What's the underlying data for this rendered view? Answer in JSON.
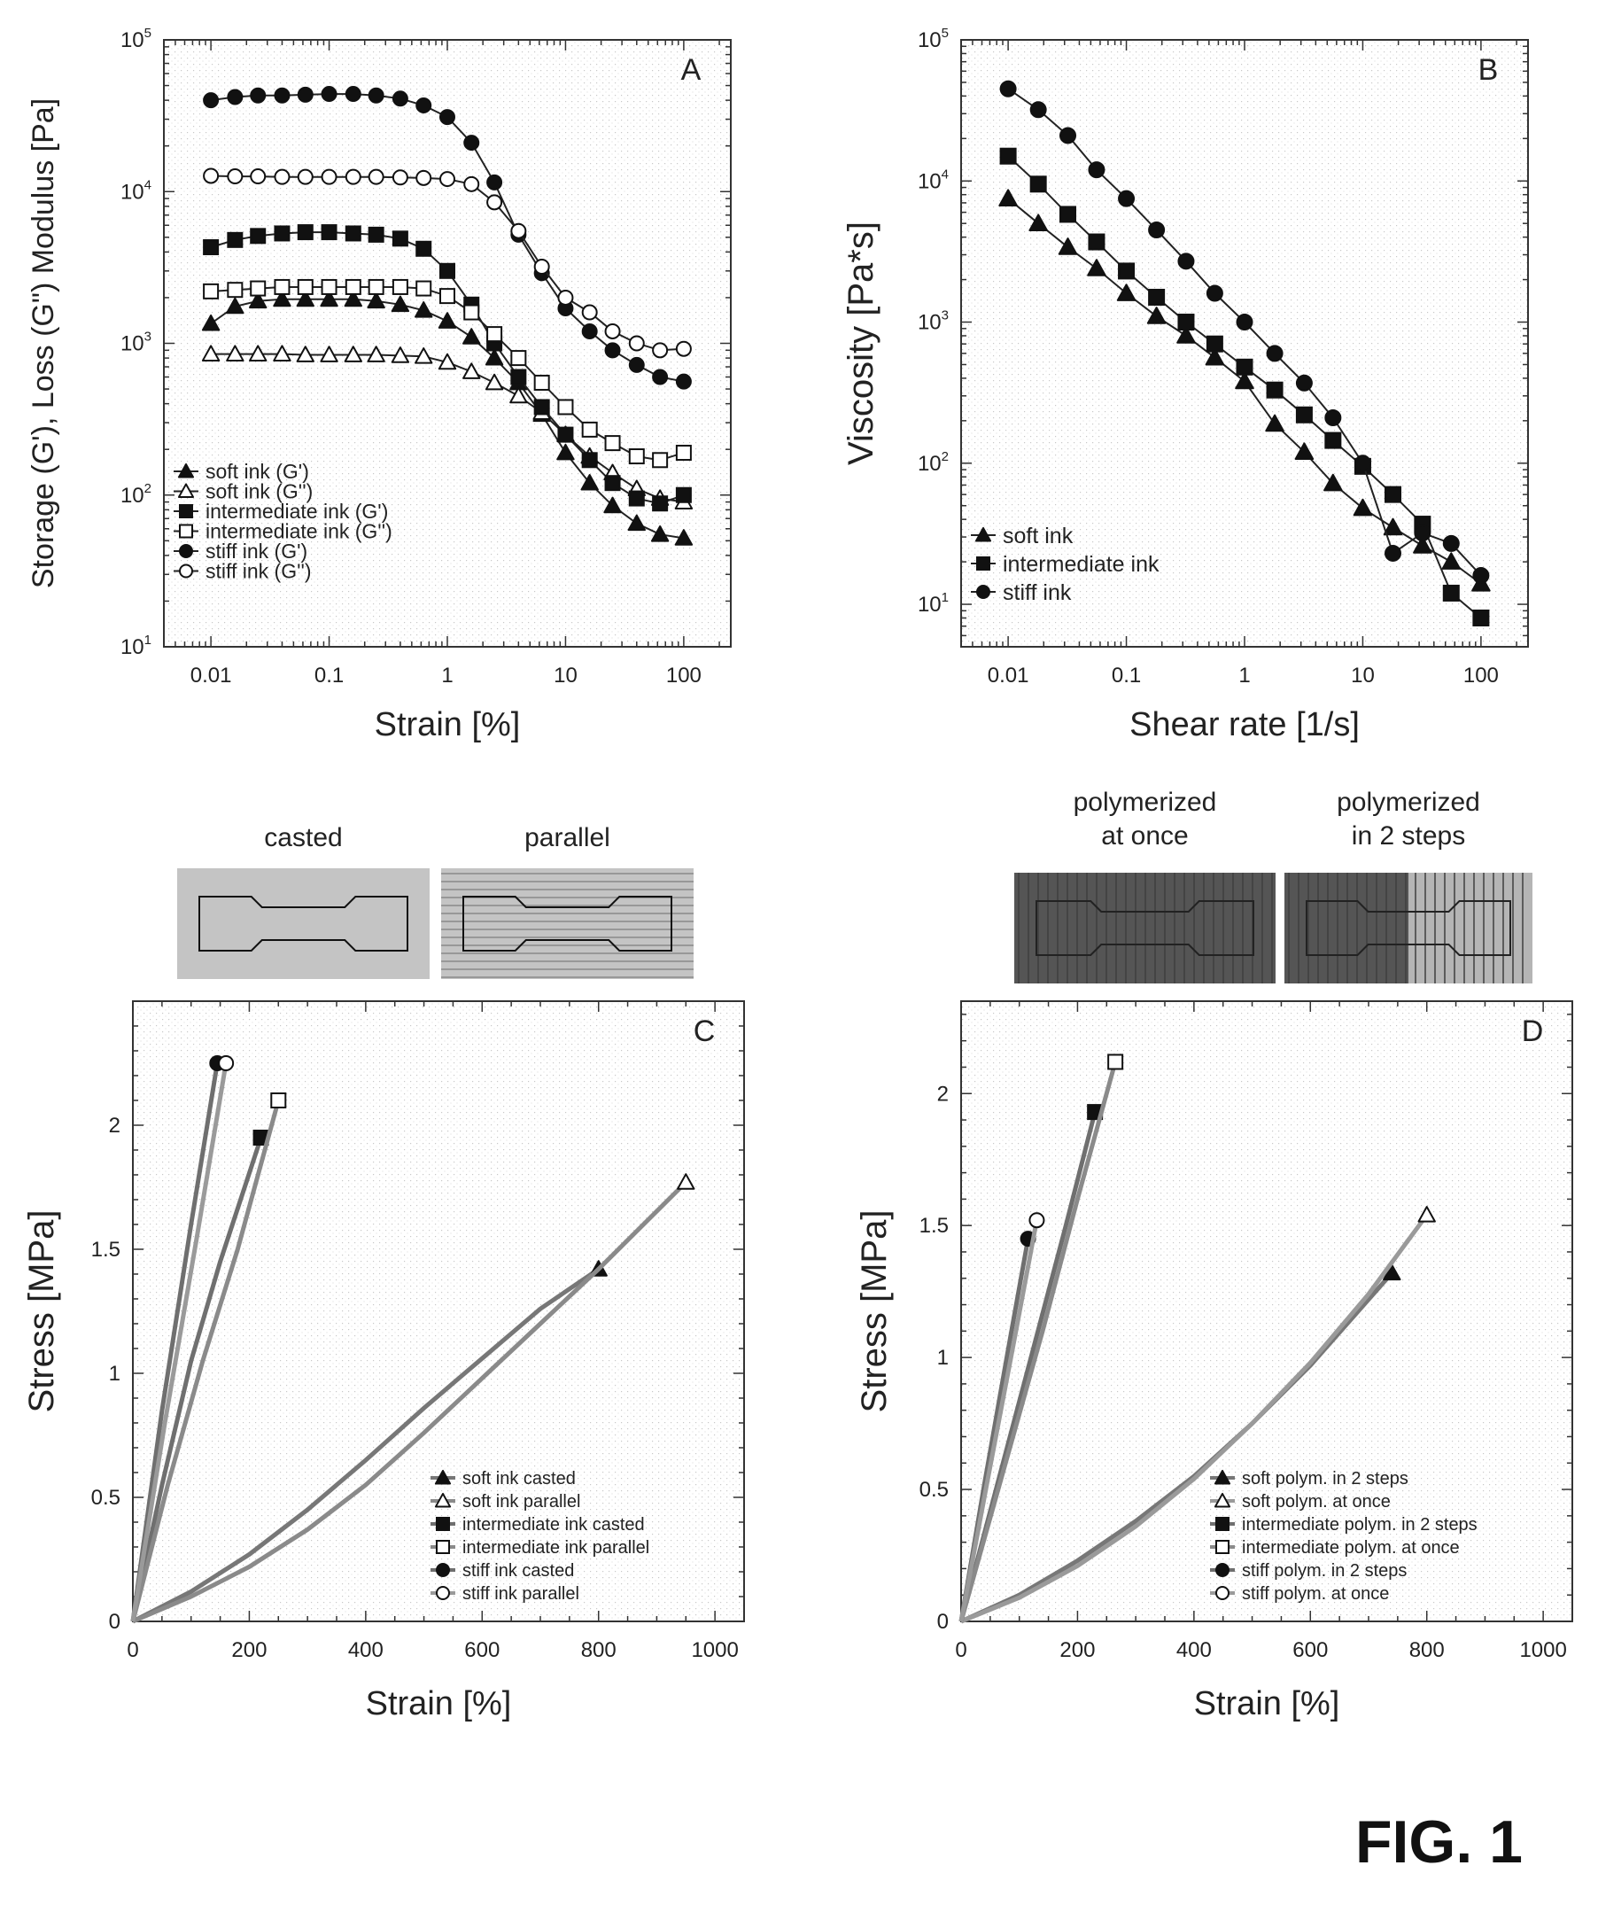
{
  "figure_label": "FIG. 1",
  "chart_data": [
    {
      "panel": "A",
      "type": "line",
      "xlabel": "Strain [%]",
      "ylabel": "Storage (G'), Loss (G\") Modulus [Pa]",
      "xscale": "log",
      "yscale": "log",
      "xlim": [
        0.004,
        250
      ],
      "ylim": [
        10,
        100000
      ],
      "xticks": [
        {
          "v": 0.01,
          "label": "0.01"
        },
        {
          "v": 0.1,
          "label": "0.1"
        },
        {
          "v": 1,
          "label": "1"
        },
        {
          "v": 10,
          "label": "10"
        },
        {
          "v": 100,
          "label": "100"
        }
      ],
      "yticks": [
        {
          "v": 10,
          "base": "10",
          "exp": "1"
        },
        {
          "v": 100,
          "base": "10",
          "exp": "2"
        },
        {
          "v": 1000,
          "base": "10",
          "exp": "3"
        },
        {
          "v": 10000,
          "base": "10",
          "exp": "4"
        },
        {
          "v": 100000,
          "base": "10",
          "exp": "5"
        }
      ],
      "legend_position": "bottom-left",
      "x": [
        0.01,
        0.016,
        0.025,
        0.04,
        0.063,
        0.1,
        0.16,
        0.25,
        0.4,
        0.63,
        1,
        1.6,
        2.5,
        4,
        6.3,
        10,
        16,
        25,
        40,
        63,
        100
      ],
      "series": [
        {
          "name": "soft ink (G')",
          "marker": "triangle",
          "filled": true,
          "values": [
            1350,
            1750,
            1900,
            1950,
            1950,
            1950,
            1950,
            1900,
            1800,
            1650,
            1400,
            1100,
            800,
            550,
            340,
            190,
            120,
            85,
            65,
            55,
            52
          ]
        },
        {
          "name": "soft ink (G'')",
          "marker": "triangle",
          "filled": false,
          "values": [
            850,
            850,
            850,
            850,
            840,
            840,
            840,
            840,
            830,
            820,
            750,
            650,
            550,
            450,
            350,
            250,
            180,
            140,
            110,
            95,
            90
          ]
        },
        {
          "name": "intermediate ink (G')",
          "marker": "square",
          "filled": true,
          "values": [
            4300,
            4800,
            5100,
            5300,
            5400,
            5400,
            5300,
            5200,
            4900,
            4200,
            3000,
            1800,
            1000,
            600,
            380,
            250,
            170,
            120,
            95,
            88,
            100
          ]
        },
        {
          "name": "intermediate ink (G'')",
          "marker": "square",
          "filled": false,
          "values": [
            2200,
            2250,
            2300,
            2350,
            2350,
            2350,
            2350,
            2350,
            2350,
            2300,
            2050,
            1600,
            1150,
            800,
            550,
            380,
            270,
            220,
            180,
            170,
            190
          ]
        },
        {
          "name": "stiff ink (G')",
          "marker": "circle",
          "filled": true,
          "values": [
            40000,
            42000,
            43000,
            43000,
            43500,
            44000,
            44000,
            43000,
            41000,
            37000,
            31000,
            21000,
            11500,
            5200,
            2900,
            1700,
            1200,
            900,
            720,
            600,
            560
          ]
        },
        {
          "name": "stiff ink (G'')",
          "marker": "circle",
          "filled": false,
          "values": [
            12700,
            12600,
            12600,
            12500,
            12500,
            12500,
            12500,
            12500,
            12400,
            12300,
            12100,
            11200,
            8500,
            5500,
            3200,
            2000,
            1600,
            1200,
            1000,
            900,
            920
          ]
        }
      ]
    },
    {
      "panel": "B",
      "type": "line",
      "xlabel": "Shear rate [1/s]",
      "ylabel": "Viscosity [Pa*s]",
      "xscale": "log",
      "yscale": "log",
      "xlim": [
        0.004,
        250
      ],
      "ylim": [
        5,
        100000
      ],
      "xticks": [
        {
          "v": 0.01,
          "label": "0.01"
        },
        {
          "v": 0.1,
          "label": "0.1"
        },
        {
          "v": 1,
          "label": "1"
        },
        {
          "v": 10,
          "label": "10"
        },
        {
          "v": 100,
          "label": "100"
        }
      ],
      "yticks": [
        {
          "v": 10,
          "base": "10",
          "exp": "1"
        },
        {
          "v": 100,
          "base": "10",
          "exp": "2"
        },
        {
          "v": 1000,
          "base": "10",
          "exp": "3"
        },
        {
          "v": 10000,
          "base": "10",
          "exp": "4"
        },
        {
          "v": 100000,
          "base": "10",
          "exp": "5"
        }
      ],
      "legend_position": "bottom-left",
      "x": [
        0.01,
        0.018,
        0.032,
        0.056,
        0.1,
        0.18,
        0.32,
        0.56,
        1,
        1.8,
        3.2,
        5.6,
        10,
        18,
        32,
        56,
        100
      ],
      "series": [
        {
          "name": "soft ink",
          "marker": "triangle",
          "filled": true,
          "values": [
            7500,
            5000,
            3400,
            2400,
            1600,
            1100,
            800,
            560,
            380,
            190,
            120,
            72,
            48,
            35,
            26,
            20,
            14
          ]
        },
        {
          "name": "intermediate ink",
          "marker": "square",
          "filled": true,
          "values": [
            15000,
            9500,
            5800,
            3700,
            2300,
            1500,
            1000,
            700,
            480,
            330,
            220,
            145,
            95,
            60,
            37,
            12,
            8
          ]
        },
        {
          "name": "stiff ink",
          "marker": "circle",
          "filled": true,
          "values": [
            45000,
            32000,
            21000,
            12000,
            7500,
            4500,
            2700,
            1600,
            1000,
            600,
            370,
            210,
            100,
            23,
            32,
            27,
            16
          ]
        }
      ]
    },
    {
      "panel": "C",
      "type": "line",
      "xlabel": "Strain [%]",
      "ylabel": "Stress [MPa]",
      "xscale": "linear",
      "yscale": "linear",
      "xlim": [
        0,
        1050
      ],
      "ylim": [
        0,
        2.5
      ],
      "xticks": [
        {
          "v": 0,
          "label": "0"
        },
        {
          "v": 200,
          "label": "200"
        },
        {
          "v": 400,
          "label": "400"
        },
        {
          "v": 600,
          "label": "600"
        },
        {
          "v": 800,
          "label": "800"
        },
        {
          "v": 1000,
          "label": "1000"
        }
      ],
      "yticks": [
        {
          "v": 0,
          "label": "0"
        },
        {
          "v": 0.5,
          "label": "0.5"
        },
        {
          "v": 1,
          "label": "1"
        },
        {
          "v": 1.5,
          "label": "1.5"
        },
        {
          "v": 2,
          "label": "2"
        }
      ],
      "legend_position": "bottom-right",
      "images": [
        {
          "label": "casted",
          "pattern": "plain"
        },
        {
          "label": "parallel",
          "pattern": "horizontal-lines"
        }
      ],
      "series": [
        {
          "name": "soft ink casted",
          "marker": "triangle",
          "filled": true,
          "color": "#777777",
          "x": [
            0,
            100,
            200,
            300,
            400,
            500,
            600,
            700,
            800
          ],
          "values": [
            0,
            0.12,
            0.27,
            0.45,
            0.65,
            0.86,
            1.06,
            1.26,
            1.42
          ]
        },
        {
          "name": "soft ink parallel",
          "marker": "triangle",
          "filled": false,
          "color": "#8a8a8a",
          "x": [
            0,
            100,
            200,
            300,
            400,
            500,
            600,
            700,
            800,
            950
          ],
          "values": [
            0,
            0.1,
            0.22,
            0.37,
            0.55,
            0.76,
            0.98,
            1.2,
            1.42,
            1.77
          ]
        },
        {
          "name": "intermediate ink casted",
          "marker": "square",
          "filled": true,
          "color": "#6f6f6f",
          "x": [
            0,
            50,
            100,
            150,
            220
          ],
          "values": [
            0,
            0.55,
            1.05,
            1.45,
            1.95
          ]
        },
        {
          "name": "intermediate ink parallel",
          "marker": "square",
          "filled": false,
          "color": "#8a8a8a",
          "x": [
            0,
            60,
            120,
            180,
            250
          ],
          "values": [
            0,
            0.55,
            1.05,
            1.5,
            2.1
          ]
        },
        {
          "name": "stiff ink casted",
          "marker": "circle",
          "filled": true,
          "color": "#6f6f6f",
          "x": [
            0,
            50,
            100,
            145
          ],
          "values": [
            0,
            0.85,
            1.6,
            2.25
          ]
        },
        {
          "name": "stiff ink parallel",
          "marker": "circle",
          "filled": false,
          "color": "#9a9a9a",
          "x": [
            0,
            55,
            110,
            160
          ],
          "values": [
            0,
            0.8,
            1.55,
            2.25
          ]
        }
      ]
    },
    {
      "panel": "D",
      "type": "line",
      "xlabel": "Strain [%]",
      "ylabel": "Stress [MPa]",
      "xscale": "linear",
      "yscale": "linear",
      "xlim": [
        0,
        1050
      ],
      "ylim": [
        0,
        2.35
      ],
      "xticks": [
        {
          "v": 0,
          "label": "0"
        },
        {
          "v": 200,
          "label": "200"
        },
        {
          "v": 400,
          "label": "400"
        },
        {
          "v": 600,
          "label": "600"
        },
        {
          "v": 800,
          "label": "800"
        },
        {
          "v": 1000,
          "label": "1000"
        }
      ],
      "yticks": [
        {
          "v": 0,
          "label": "0"
        },
        {
          "v": 0.5,
          "label": "0.5"
        },
        {
          "v": 1,
          "label": "1"
        },
        {
          "v": 1.5,
          "label": "1.5"
        },
        {
          "v": 2,
          "label": "2"
        }
      ],
      "legend_position": "bottom-right",
      "images": [
        {
          "label": "polymerized at once",
          "line1": "polymerized",
          "line2": "at once",
          "pattern": "dark-vertical"
        },
        {
          "label": "polymerized in 2 steps",
          "line1": "polymerized",
          "line2": "in 2 steps",
          "pattern": "two-tone-vertical"
        }
      ],
      "series": [
        {
          "name": "soft polym. in 2 steps",
          "marker": "triangle",
          "filled": true,
          "color": "#777777",
          "x": [
            0,
            100,
            200,
            300,
            400,
            500,
            600,
            740
          ],
          "values": [
            0,
            0.1,
            0.23,
            0.38,
            0.55,
            0.75,
            0.97,
            1.32
          ]
        },
        {
          "name": "soft polym. at once",
          "marker": "triangle",
          "filled": false,
          "color": "#9a9a9a",
          "x": [
            0,
            100,
            200,
            300,
            400,
            500,
            600,
            700,
            800
          ],
          "values": [
            0,
            0.09,
            0.21,
            0.36,
            0.54,
            0.75,
            0.98,
            1.24,
            1.54
          ]
        },
        {
          "name": "intermediate polym. in 2 steps",
          "marker": "square",
          "filled": true,
          "color": "#6f6f6f",
          "x": [
            0,
            60,
            120,
            180,
            230
          ],
          "values": [
            0,
            0.5,
            1.0,
            1.5,
            1.93
          ]
        },
        {
          "name": "intermediate polym. at once",
          "marker": "square",
          "filled": false,
          "color": "#8a8a8a",
          "x": [
            0,
            70,
            140,
            200,
            265
          ],
          "values": [
            0,
            0.55,
            1.1,
            1.6,
            2.12
          ]
        },
        {
          "name": "stiff polym. in 2 steps",
          "marker": "circle",
          "filled": true,
          "color": "#6f6f6f",
          "x": [
            0,
            40,
            80,
            115
          ],
          "values": [
            0,
            0.52,
            1.02,
            1.45
          ]
        },
        {
          "name": "stiff polym. at once",
          "marker": "circle",
          "filled": false,
          "color": "#9a9a9a",
          "x": [
            0,
            45,
            90,
            130
          ],
          "values": [
            0,
            0.53,
            1.05,
            1.52
          ]
        }
      ]
    }
  ]
}
